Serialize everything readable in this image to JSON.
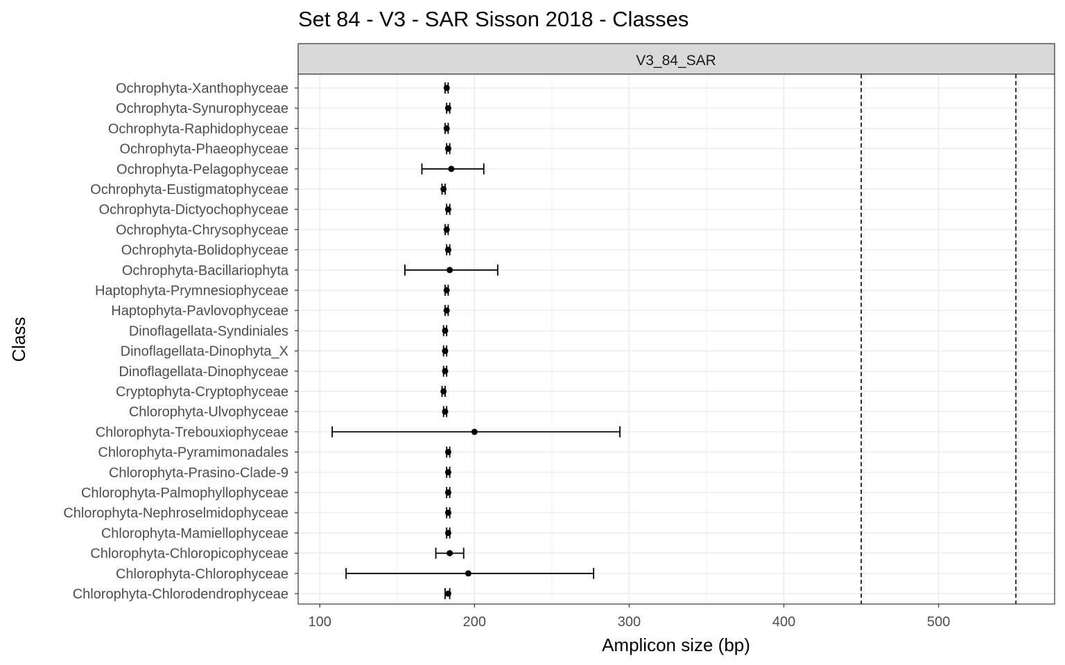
{
  "chart_data": {
    "type": "scatter",
    "title": "Set 84 - V3 - SAR Sisson 2018 - Classes",
    "facet_label": "V3_84_SAR",
    "xlabel": "Amplicon size (bp)",
    "ylabel": "Class",
    "xlim": [
      86,
      575
    ],
    "x_ticks": [
      100,
      200,
      300,
      400,
      500
    ],
    "reference_lines": [
      450,
      550
    ],
    "grid": true,
    "categories": [
      "Ochrophyta-Xanthophyceae",
      "Ochrophyta-Synurophyceae",
      "Ochrophyta-Raphidophyceae",
      "Ochrophyta-Phaeophyceae",
      "Ochrophyta-Pelagophyceae",
      "Ochrophyta-Eustigmatophyceae",
      "Ochrophyta-Dictyochophyceae",
      "Ochrophyta-Chrysophyceae",
      "Ochrophyta-Bolidophyceae",
      "Ochrophyta-Bacillariophyta",
      "Haptophyta-Prymnesiophyceae",
      "Haptophyta-Pavlovophyceae",
      "Dinoflagellata-Syndiniales",
      "Dinoflagellata-Dinophyta_X",
      "Dinoflagellata-Dinophyceae",
      "Cryptophyta-Cryptophyceae",
      "Chlorophyta-Ulvophyceae",
      "Chlorophyta-Trebouxiophyceae",
      "Chlorophyta-Pyramimonadales",
      "Chlorophyta-Prasino-Clade-9",
      "Chlorophyta-Palmophyllophyceae",
      "Chlorophyta-Nephroselmidophyceae",
      "Chlorophyta-Mamiellophyceae",
      "Chlorophyta-Chloropicophyceae",
      "Chlorophyta-Chlorophyceae",
      "Chlorophyta-Chlorodendrophyceae"
    ],
    "mean": [
      182,
      183,
      182,
      183,
      185,
      180,
      183,
      182,
      183,
      184,
      182,
      182,
      181,
      181,
      181,
      180,
      181,
      200,
      183,
      183,
      183,
      183,
      183,
      184,
      196,
      183
    ],
    "lower": [
      181,
      182,
      181,
      182,
      166,
      179,
      182,
      181,
      182,
      155,
      181,
      181,
      180,
      180,
      180,
      179,
      180,
      108,
      182,
      182,
      182,
      182,
      182,
      175,
      117,
      181
    ],
    "upper": [
      183,
      184,
      183,
      184,
      206,
      181,
      184,
      183,
      184,
      215,
      183,
      183,
      182,
      182,
      182,
      181,
      182,
      294,
      184,
      184,
      184,
      184,
      184,
      193,
      277,
      184
    ]
  }
}
